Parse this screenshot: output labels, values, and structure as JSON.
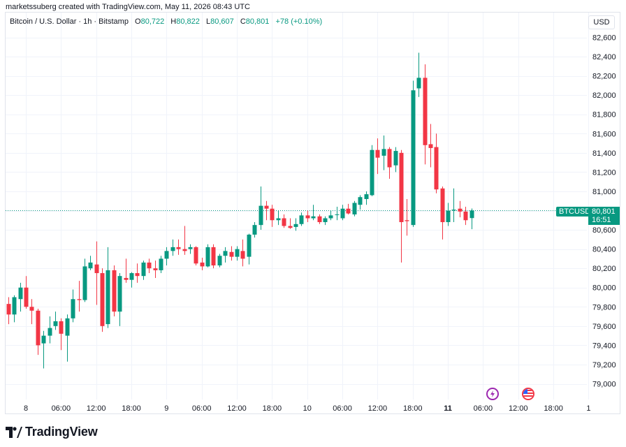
{
  "header": {
    "caption": "marketssuberg created with TradingView.com, May 11, 2026 08:43 UTC"
  },
  "legend": {
    "symbol": "Bitcoin / U.S. Dollar · 1h · Bitstamp",
    "o_label": "O",
    "o_value": "80,722",
    "h_label": "H",
    "h_value": "80,822",
    "l_label": "L",
    "l_value": "80,607",
    "c_label": "C",
    "c_value": "80,801",
    "change": "+78 (+0.10%)"
  },
  "currency_button": "USD",
  "price_badge": {
    "symbol": "BTCUSD",
    "price": "80,801",
    "countdown": "16:51"
  },
  "brand": "TradingView",
  "colors": {
    "up": "#089981",
    "down": "#f23645",
    "grid": "#f0f3fa",
    "axis_text": "#131722"
  },
  "icons": [
    "trading-view-logo-icon",
    "economic-event-icon",
    "us-flag-event-icon"
  ],
  "chart_data": {
    "type": "candlestick",
    "title": "Bitcoin / U.S. Dollar · 1h · Bitstamp",
    "ylim": [
      78800,
      82650
    ],
    "y_ticks": [
      79000,
      79200,
      79400,
      79600,
      79800,
      80000,
      80200,
      80400,
      80600,
      80800,
      81000,
      81200,
      81400,
      81600,
      81800,
      82000,
      82200,
      82400,
      82600
    ],
    "y_tick_labels": [
      "79,000",
      "79,200",
      "79,400",
      "79,600",
      "79,800",
      "80,000",
      "80,200",
      "80,400",
      "80,600",
      "80,800",
      "81,000",
      "81,200",
      "81,400",
      "81,600",
      "81,800",
      "82,000",
      "82,200",
      "82,400",
      "82,600"
    ],
    "x_tick_labels": [
      "8",
      "06:00",
      "12:00",
      "18:00",
      "9",
      "06:00",
      "12:00",
      "18:00",
      "10",
      "06:00",
      "12:00",
      "18:00",
      "11",
      "06:00",
      "12:00",
      "18:00",
      "1"
    ],
    "x_tick_hours": [
      0,
      6,
      12,
      18,
      24,
      30,
      36,
      42,
      48,
      54,
      60,
      66,
      72,
      78,
      84,
      90,
      96
    ],
    "bold_x_ticks": [
      "11"
    ],
    "last_price": 80801,
    "candles": [
      {
        "t": -3,
        "o": 79830,
        "h": 79900,
        "l": 79620,
        "c": 79720
      },
      {
        "t": -2,
        "o": 79720,
        "h": 79920,
        "l": 79640,
        "c": 79900
      },
      {
        "t": -1,
        "o": 79880,
        "h": 80050,
        "l": 79750,
        "c": 80000
      },
      {
        "t": 0,
        "o": 80000,
        "h": 80120,
        "l": 79780,
        "c": 79800
      },
      {
        "t": 1,
        "o": 79800,
        "h": 79880,
        "l": 79620,
        "c": 79760
      },
      {
        "t": 2,
        "o": 79760,
        "h": 79780,
        "l": 79300,
        "c": 79400
      },
      {
        "t": 3,
        "o": 79420,
        "h": 79550,
        "l": 79160,
        "c": 79500
      },
      {
        "t": 4,
        "o": 79500,
        "h": 79700,
        "l": 79420,
        "c": 79580
      },
      {
        "t": 5,
        "o": 79600,
        "h": 79750,
        "l": 79560,
        "c": 79650
      },
      {
        "t": 6,
        "o": 79650,
        "h": 79680,
        "l": 79350,
        "c": 79520
      },
      {
        "t": 7,
        "o": 79500,
        "h": 79720,
        "l": 79230,
        "c": 79680
      },
      {
        "t": 8,
        "o": 79680,
        "h": 79980,
        "l": 79640,
        "c": 79880
      },
      {
        "t": 9,
        "o": 79880,
        "h": 80070,
        "l": 79750,
        "c": 79870
      },
      {
        "t": 10,
        "o": 79870,
        "h": 80300,
        "l": 79850,
        "c": 80220
      },
      {
        "t": 11,
        "o": 80200,
        "h": 80330,
        "l": 80180,
        "c": 80260
      },
      {
        "t": 12,
        "o": 80240,
        "h": 80480,
        "l": 79820,
        "c": 80150
      },
      {
        "t": 13,
        "o": 80150,
        "h": 80200,
        "l": 79540,
        "c": 79600
      },
      {
        "t": 14,
        "o": 79620,
        "h": 80420,
        "l": 79580,
        "c": 80180
      },
      {
        "t": 15,
        "o": 80180,
        "h": 80230,
        "l": 79700,
        "c": 79750
      },
      {
        "t": 16,
        "o": 79750,
        "h": 80150,
        "l": 79600,
        "c": 80120
      },
      {
        "t": 17,
        "o": 80100,
        "h": 80300,
        "l": 80050,
        "c": 80080
      },
      {
        "t": 18,
        "o": 80080,
        "h": 80160,
        "l": 80000,
        "c": 80150
      },
      {
        "t": 19,
        "o": 80150,
        "h": 80250,
        "l": 80050,
        "c": 80120
      },
      {
        "t": 20,
        "o": 80120,
        "h": 80280,
        "l": 80080,
        "c": 80260
      },
      {
        "t": 21,
        "o": 80260,
        "h": 80300,
        "l": 80150,
        "c": 80200
      },
      {
        "t": 22,
        "o": 80200,
        "h": 80280,
        "l": 80100,
        "c": 80180
      },
      {
        "t": 23,
        "o": 80180,
        "h": 80330,
        "l": 80150,
        "c": 80300
      },
      {
        "t": 24,
        "o": 80300,
        "h": 80420,
        "l": 80230,
        "c": 80380
      },
      {
        "t": 25,
        "o": 80380,
        "h": 80500,
        "l": 80330,
        "c": 80420
      },
      {
        "t": 26,
        "o": 80420,
        "h": 80500,
        "l": 80340,
        "c": 80400
      },
      {
        "t": 27,
        "o": 80400,
        "h": 80640,
        "l": 80340,
        "c": 80380
      },
      {
        "t": 28,
        "o": 80400,
        "h": 80450,
        "l": 80350,
        "c": 80420
      },
      {
        "t": 29,
        "o": 80420,
        "h": 80430,
        "l": 80230,
        "c": 80250
      },
      {
        "t": 30,
        "o": 80260,
        "h": 80310,
        "l": 80180,
        "c": 80220
      },
      {
        "t": 31,
        "o": 80220,
        "h": 80450,
        "l": 80210,
        "c": 80420
      },
      {
        "t": 32,
        "o": 80420,
        "h": 80450,
        "l": 80200,
        "c": 80230
      },
      {
        "t": 33,
        "o": 80230,
        "h": 80350,
        "l": 80210,
        "c": 80330
      },
      {
        "t": 34,
        "o": 80330,
        "h": 80420,
        "l": 80260,
        "c": 80380
      },
      {
        "t": 35,
        "o": 80370,
        "h": 80430,
        "l": 80280,
        "c": 80320
      },
      {
        "t": 36,
        "o": 80320,
        "h": 80430,
        "l": 80280,
        "c": 80400
      },
      {
        "t": 37,
        "o": 80380,
        "h": 80500,
        "l": 80220,
        "c": 80300
      },
      {
        "t": 38,
        "o": 80320,
        "h": 80560,
        "l": 80240,
        "c": 80550
      },
      {
        "t": 39,
        "o": 80550,
        "h": 80680,
        "l": 80520,
        "c": 80650
      },
      {
        "t": 40,
        "o": 80650,
        "h": 81050,
        "l": 80600,
        "c": 80850
      },
      {
        "t": 41,
        "o": 80850,
        "h": 80900,
        "l": 80700,
        "c": 80820
      },
      {
        "t": 42,
        "o": 80820,
        "h": 80860,
        "l": 80630,
        "c": 80700
      },
      {
        "t": 43,
        "o": 80700,
        "h": 80800,
        "l": 80650,
        "c": 80720
      },
      {
        "t": 44,
        "o": 80720,
        "h": 80760,
        "l": 80620,
        "c": 80640
      },
      {
        "t": 45,
        "o": 80640,
        "h": 80720,
        "l": 80610,
        "c": 80620
      },
      {
        "t": 46,
        "o": 80630,
        "h": 80720,
        "l": 80590,
        "c": 80660
      },
      {
        "t": 47,
        "o": 80660,
        "h": 80780,
        "l": 80640,
        "c": 80750
      },
      {
        "t": 48,
        "o": 80750,
        "h": 80800,
        "l": 80680,
        "c": 80720
      },
      {
        "t": 49,
        "o": 80720,
        "h": 80860,
        "l": 80700,
        "c": 80740
      },
      {
        "t": 50,
        "o": 80740,
        "h": 80760,
        "l": 80660,
        "c": 80680
      },
      {
        "t": 51,
        "o": 80680,
        "h": 80740,
        "l": 80650,
        "c": 80720
      },
      {
        "t": 52,
        "o": 80720,
        "h": 80800,
        "l": 80700,
        "c": 80750
      },
      {
        "t": 53,
        "o": 80760,
        "h": 80840,
        "l": 80700,
        "c": 80760
      },
      {
        "t": 54,
        "o": 80720,
        "h": 80860,
        "l": 80700,
        "c": 80820
      },
      {
        "t": 55,
        "o": 80820,
        "h": 80870,
        "l": 80760,
        "c": 80770
      },
      {
        "t": 56,
        "o": 80760,
        "h": 80900,
        "l": 80740,
        "c": 80880
      },
      {
        "t": 57,
        "o": 80860,
        "h": 80960,
        "l": 80810,
        "c": 80940
      },
      {
        "t": 58,
        "o": 80920,
        "h": 81000,
        "l": 80860,
        "c": 80970
      },
      {
        "t": 59,
        "o": 80960,
        "h": 81480,
        "l": 80950,
        "c": 81430
      },
      {
        "t": 60,
        "o": 81430,
        "h": 81550,
        "l": 81180,
        "c": 81350
      },
      {
        "t": 61,
        "o": 81370,
        "h": 81580,
        "l": 81220,
        "c": 81440
      },
      {
        "t": 62,
        "o": 81440,
        "h": 81460,
        "l": 81130,
        "c": 81250
      },
      {
        "t": 63,
        "o": 81270,
        "h": 81460,
        "l": 81200,
        "c": 81420
      },
      {
        "t": 64,
        "o": 81400,
        "h": 81430,
        "l": 80260,
        "c": 80680
      },
      {
        "t": 65,
        "o": 80700,
        "h": 80920,
        "l": 80540,
        "c": 80690
      },
      {
        "t": 66,
        "o": 80650,
        "h": 82150,
        "l": 80630,
        "c": 82050
      },
      {
        "t": 67,
        "o": 82070,
        "h": 82440,
        "l": 81980,
        "c": 82180
      },
      {
        "t": 68,
        "o": 82180,
        "h": 82320,
        "l": 81280,
        "c": 81480
      },
      {
        "t": 69,
        "o": 81490,
        "h": 81700,
        "l": 81250,
        "c": 81450
      },
      {
        "t": 70,
        "o": 81460,
        "h": 81600,
        "l": 80980,
        "c": 81020
      },
      {
        "t": 71,
        "o": 81030,
        "h": 81050,
        "l": 80500,
        "c": 80680
      },
      {
        "t": 72,
        "o": 80680,
        "h": 80880,
        "l": 80640,
        "c": 80800
      },
      {
        "t": 73,
        "o": 80800,
        "h": 81030,
        "l": 80680,
        "c": 80810
      },
      {
        "t": 74,
        "o": 80820,
        "h": 80900,
        "l": 80730,
        "c": 80790
      },
      {
        "t": 75,
        "o": 80790,
        "h": 80840,
        "l": 80650,
        "c": 80700
      },
      {
        "t": 76,
        "o": 80722,
        "h": 80822,
        "l": 80607,
        "c": 80801
      }
    ]
  }
}
